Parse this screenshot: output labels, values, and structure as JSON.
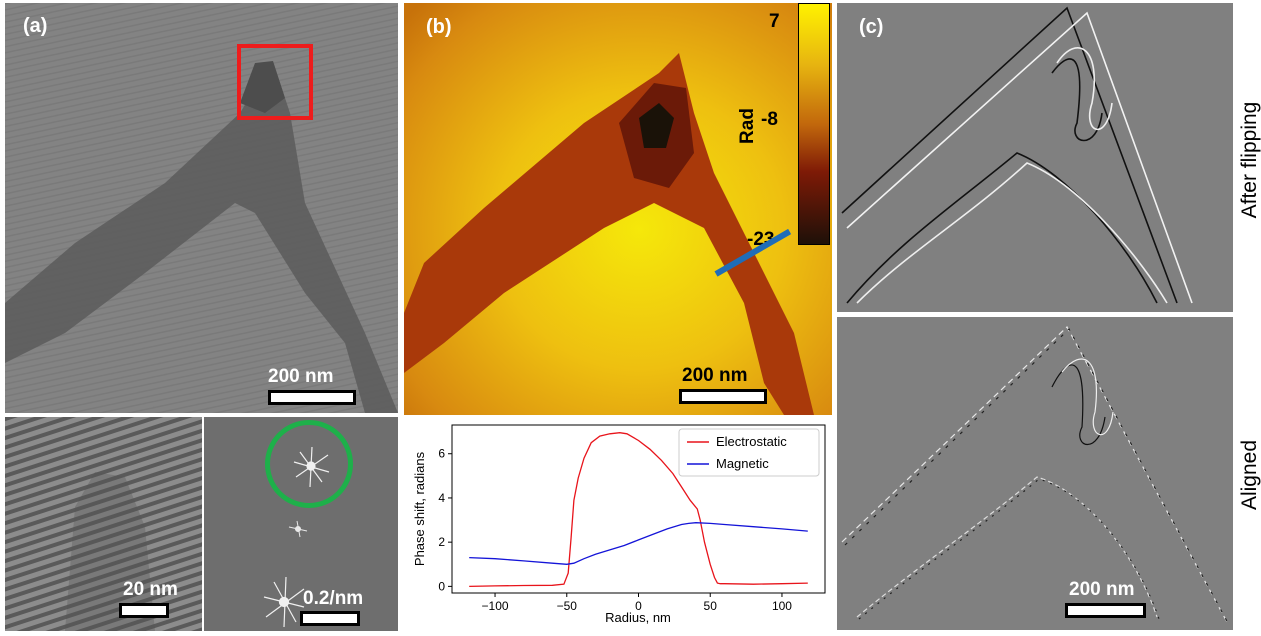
{
  "panel_a": {
    "label": "(a)",
    "main_scalebar": "200 nm",
    "hrtem_scalebar": "20 nm",
    "fft_scalebar": "0.2/nm"
  },
  "panel_b": {
    "label": "(b)",
    "colorbar_title": "Rad",
    "colorbar_ticks": [
      "7",
      "-8",
      "-23"
    ],
    "scalebar": "200 nm"
  },
  "panel_c": {
    "label": "(c)",
    "top_label": "After flipping",
    "bottom_label": "Aligned",
    "scalebar": "200 nm"
  },
  "chart_data": {
    "type": "line",
    "title": "",
    "xlabel": "Radius, nm",
    "ylabel": "Phase shift, radians",
    "xlim": [
      -130,
      130
    ],
    "ylim": [
      -0.3,
      7.3
    ],
    "xticks": [
      -100,
      -50,
      0,
      50,
      100
    ],
    "yticks": [
      0,
      2,
      4,
      6
    ],
    "xtick_labels": [
      "−100",
      "−50",
      "0",
      "50",
      "100"
    ],
    "ytick_labels": [
      "0",
      "2",
      "4",
      "6"
    ],
    "legend_position": "top-right",
    "series": [
      {
        "name": "Electrostatic",
        "color": "#e8141b",
        "x": [
          -118,
          -100,
          -80,
          -60,
          -52,
          -49,
          -47,
          -45,
          -42,
          -38,
          -33,
          -27,
          -20,
          -13,
          -8,
          0,
          8,
          16,
          24,
          30,
          36,
          41,
          43,
          46,
          50,
          53,
          55,
          57,
          60,
          80,
          100,
          118
        ],
        "y": [
          0.0,
          0.02,
          0.04,
          0.05,
          0.1,
          0.6,
          2.2,
          3.9,
          4.9,
          5.8,
          6.5,
          6.8,
          6.9,
          6.95,
          6.9,
          6.6,
          6.2,
          5.7,
          5.1,
          4.5,
          3.9,
          3.5,
          3.0,
          2.0,
          1.0,
          0.4,
          0.15,
          0.12,
          0.12,
          0.1,
          0.12,
          0.15
        ]
      },
      {
        "name": "Magnetic",
        "color": "#1414d8",
        "x": [
          -118,
          -100,
          -80,
          -60,
          -50,
          -45,
          -38,
          -30,
          -20,
          -10,
          0,
          10,
          20,
          30,
          35,
          40,
          50,
          60,
          80,
          100,
          118
        ],
        "y": [
          1.3,
          1.25,
          1.15,
          1.05,
          1.0,
          1.05,
          1.25,
          1.45,
          1.65,
          1.85,
          2.1,
          2.35,
          2.6,
          2.8,
          2.85,
          2.88,
          2.85,
          2.8,
          2.7,
          2.6,
          2.5
        ]
      }
    ]
  }
}
